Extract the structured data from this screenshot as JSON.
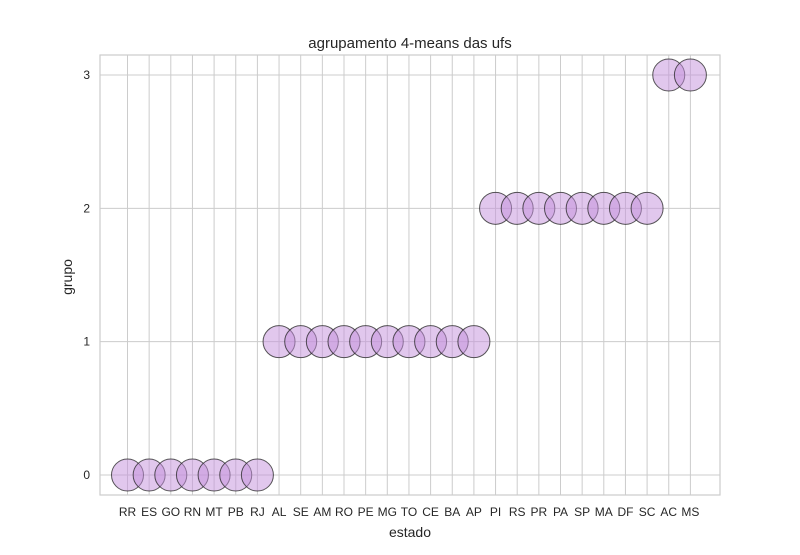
{
  "chart_data": {
    "type": "scatter",
    "title": "agrupamento 4-means das ufs",
    "xlabel": "estado",
    "ylabel": "grupo",
    "categories": [
      "RR",
      "ES",
      "GO",
      "RN",
      "MT",
      "PB",
      "RJ",
      "AL",
      "SE",
      "AM",
      "RO",
      "PE",
      "MG",
      "TO",
      "CE",
      "BA",
      "AP",
      "PI",
      "RS",
      "PR",
      "PA",
      "SP",
      "MA",
      "DF",
      "SC",
      "AC",
      "MS"
    ],
    "values": [
      0,
      0,
      0,
      0,
      0,
      0,
      0,
      1,
      1,
      1,
      1,
      1,
      1,
      1,
      1,
      1,
      1,
      2,
      2,
      2,
      2,
      2,
      2,
      2,
      2,
      3,
      3
    ],
    "yticks": [
      0,
      1,
      2,
      3
    ],
    "ylim": [
      -0.15,
      3.15
    ],
    "grid": true,
    "marker_color": "#c38fdc"
  }
}
